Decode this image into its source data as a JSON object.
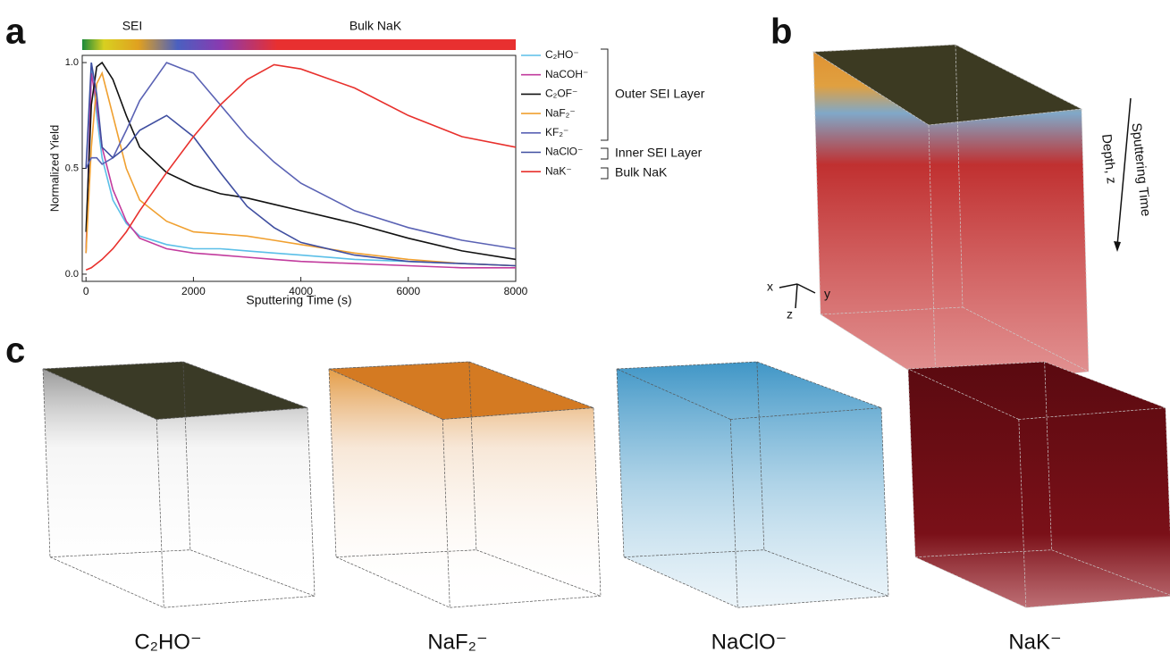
{
  "panel_labels": [
    "a",
    "b",
    "c"
  ],
  "chart_data": {
    "type": "line",
    "band_labels": [
      "SEI",
      "Bulk NaK"
    ],
    "xlabel": "Sputtering Time (s)",
    "ylabel": "Normalized Yield",
    "x": [
      0,
      100,
      200,
      300,
      500,
      750,
      1000,
      1500,
      2000,
      2500,
      3000,
      3500,
      4000,
      5000,
      6000,
      7000,
      8000
    ],
    "series": [
      {
        "name": "C₂HO⁻",
        "color": "#5bbfe8",
        "values": [
          0.1,
          1.0,
          0.75,
          0.55,
          0.35,
          0.24,
          0.18,
          0.14,
          0.12,
          0.12,
          0.11,
          0.1,
          0.09,
          0.07,
          0.06,
          0.05,
          0.04
        ]
      },
      {
        "name": "NaCOH⁻",
        "color": "#c23c9e",
        "values": [
          0.1,
          0.95,
          0.8,
          0.6,
          0.4,
          0.25,
          0.17,
          0.12,
          0.1,
          0.09,
          0.08,
          0.07,
          0.06,
          0.05,
          0.04,
          0.03,
          0.03
        ]
      },
      {
        "name": "C₂OF⁻",
        "color": "#111111",
        "values": [
          0.2,
          0.8,
          0.98,
          1.0,
          0.92,
          0.75,
          0.6,
          0.48,
          0.42,
          0.38,
          0.36,
          0.33,
          0.3,
          0.24,
          0.17,
          0.11,
          0.07
        ]
      },
      {
        "name": "NaF₂⁻",
        "color": "#f0a030",
        "values": [
          0.1,
          0.6,
          0.9,
          0.95,
          0.75,
          0.5,
          0.35,
          0.25,
          0.2,
          0.19,
          0.18,
          0.16,
          0.14,
          0.1,
          0.07,
          0.05,
          0.04
        ]
      },
      {
        "name": "KF₂⁻",
        "color": "#5a62b4",
        "values": [
          0.5,
          0.55,
          0.55,
          0.52,
          0.55,
          0.68,
          0.82,
          1.0,
          0.95,
          0.8,
          0.65,
          0.53,
          0.43,
          0.3,
          0.22,
          0.16,
          0.12
        ]
      },
      {
        "name": "NaClO⁻",
        "color": "#3f4ea0",
        "values": [
          0.5,
          1.0,
          0.85,
          0.6,
          0.55,
          0.6,
          0.68,
          0.75,
          0.65,
          0.48,
          0.32,
          0.22,
          0.15,
          0.09,
          0.06,
          0.05,
          0.04
        ]
      },
      {
        "name": "NaK⁻",
        "color": "#e8302c",
        "values": [
          0.02,
          0.03,
          0.05,
          0.07,
          0.12,
          0.2,
          0.3,
          0.48,
          0.65,
          0.8,
          0.92,
          0.99,
          0.97,
          0.88,
          0.75,
          0.65,
          0.6
        ]
      }
    ],
    "legend_groups": [
      "Outer SEI Layer",
      "Inner SEI Layer",
      "Bulk NaK"
    ],
    "xlim": [
      -70,
      8000
    ],
    "xticks": [
      0,
      2000,
      4000,
      6000,
      8000
    ],
    "ylim": [
      -0.034,
      1.034
    ],
    "yticks": [
      {
        "value": 0,
        "label": "0.0"
      },
      {
        "value": 0.5,
        "label": "0.5"
      },
      {
        "value": 1,
        "label": "1.0"
      }
    ]
  },
  "panel_b": {
    "arrow_labels": [
      "Sputtering Time",
      "Depth, z"
    ],
    "axes": [
      "x",
      "y",
      "z"
    ]
  },
  "panel_c": {
    "labels": [
      "C₂HO⁻",
      "NaF₂⁻",
      "NaClO⁻",
      "NaK⁻"
    ]
  }
}
